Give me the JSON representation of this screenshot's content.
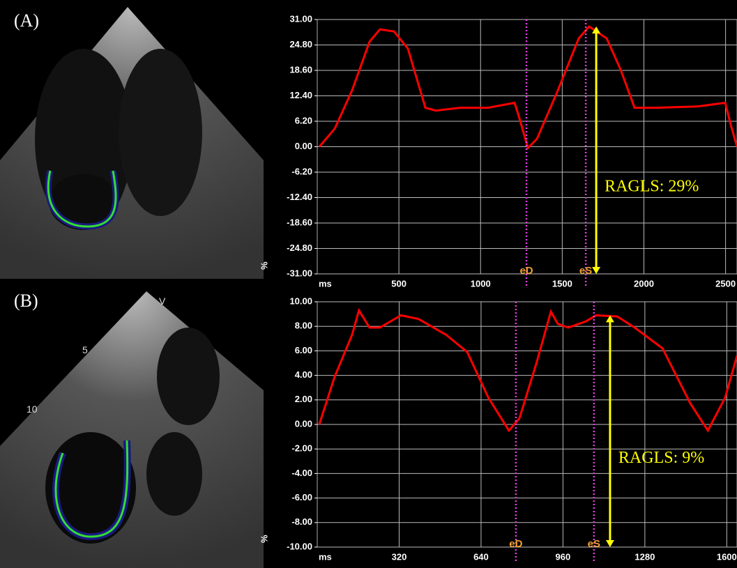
{
  "chart_data": [
    {
      "type": "line",
      "label": "(A)",
      "color": "#ff0000",
      "x": [
        13,
        107,
        213,
        320,
        384,
        470,
        555,
        662,
        726,
        875,
        1046,
        1208,
        1238,
        1290,
        1345,
        1473,
        1601,
        1665,
        1772,
        1857,
        1943,
        2071,
        2327,
        2498,
        2532,
        2570
      ],
      "values": [
        0,
        4.4,
        13.7,
        25.6,
        28.6,
        28.1,
        23.9,
        9.5,
        8.8,
        9.5,
        9.5,
        10.7,
        6.9,
        -0.3,
        1.9,
        13.7,
        26.4,
        29.3,
        26.4,
        18.8,
        9.5,
        9.5,
        9.8,
        10.7,
        5.3,
        0
      ],
      "xlim": [
        0,
        2570
      ],
      "ylim": [
        -31,
        31
      ],
      "xticks": [
        500,
        1000,
        1500,
        2000,
        2500
      ],
      "yticks": [
        {
          "value": 31,
          "label": "31.00"
        },
        {
          "value": 24.8,
          "label": "24.80"
        },
        {
          "value": 18.6,
          "label": "18.60"
        },
        {
          "value": 12.4,
          "label": "12.40"
        },
        {
          "value": 6.2,
          "label": "6.20"
        },
        {
          "value": 0,
          "label": "0.00"
        },
        {
          "value": -6.2,
          "label": "-6.20"
        },
        {
          "value": -12.4,
          "label": "-12.40"
        },
        {
          "value": -18.6,
          "label": "-18.60"
        },
        {
          "value": -24.8,
          "label": "-24.80"
        },
        {
          "value": -31,
          "label": "-31.00"
        }
      ],
      "xlabel": "ms",
      "ylabel": "%",
      "grid": true,
      "markers": [
        {
          "text": "eD",
          "x": 1281
        },
        {
          "text": "eS",
          "x": 1644
        }
      ],
      "arrow": {
        "text": "RAGLS: 29%",
        "x": 1708,
        "y": [
          29.3,
          -31
        ]
      },
      "image_labels": []
    },
    {
      "type": "line",
      "label": "(B)",
      "color": "#ff0000",
      "x": [
        8,
        68,
        136,
        163,
        204,
        245,
        327,
        395,
        504,
        586,
        668,
        749,
        790,
        858,
        913,
        940,
        981,
        1049,
        1090,
        1172,
        1240,
        1349,
        1458,
        1526,
        1594,
        1640
      ],
      "values": [
        0,
        3.9,
        7.3,
        9.3,
        7.9,
        7.9,
        8.9,
        8.6,
        7.3,
        5.9,
        2.2,
        -0.5,
        0.5,
        5.1,
        9.2,
        8.2,
        7.9,
        8.4,
        8.9,
        8.8,
        7.9,
        6.2,
        1.7,
        -0.5,
        2.2,
        5.6
      ],
      "xlim": [
        0,
        1640
      ],
      "ylim": [
        -10,
        10
      ],
      "xticks": [
        320,
        640,
        960,
        1280,
        1600
      ],
      "yticks": [
        {
          "value": 10,
          "label": "10.00"
        },
        {
          "value": 8,
          "label": "8.00"
        },
        {
          "value": 6,
          "label": "6.00"
        },
        {
          "value": 4,
          "label": "4.00"
        },
        {
          "value": 2,
          "label": "2.00"
        },
        {
          "value": 0,
          "label": "0.00"
        },
        {
          "value": -2,
          "label": "-2.00"
        },
        {
          "value": -4,
          "label": "-4.00"
        },
        {
          "value": -6,
          "label": "-6.00"
        },
        {
          "value": -8,
          "label": "-8.00"
        },
        {
          "value": -10,
          "label": "-10.00"
        }
      ],
      "xlabel": "ms",
      "ylabel": "%",
      "grid": true,
      "markers": [
        {
          "text": "eD",
          "x": 776
        },
        {
          "text": "eS",
          "x": 1081
        }
      ],
      "arrow": {
        "text": "RAGLS: 9%",
        "x": 1144,
        "y": [
          8.9,
          -10
        ]
      },
      "image_labels": [
        "V",
        "5",
        "10"
      ]
    }
  ]
}
